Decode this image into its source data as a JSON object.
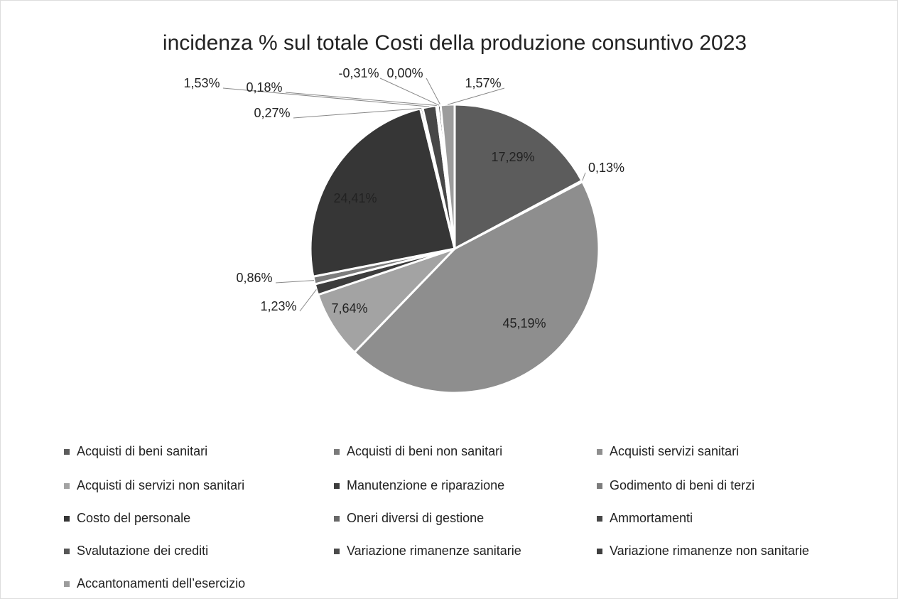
{
  "chart_data": {
    "type": "pie",
    "title": "incidenza  % sul totale Costi della produzione consuntivo 2023",
    "categories": [
      "Acquisti di beni sanitari",
      "Acquisti di beni non sanitari",
      "Acquisti servizi sanitari",
      " Acquisti di servizi non sanitari",
      "Manutenzione e riparazione",
      "Godimento di beni di terzi",
      "Costo del personale",
      "Oneri diversi di gestione",
      "Ammortamenti",
      "Svalutazione dei crediti",
      "Variazione rimanenze sanitarie",
      "Variazione rimanenze non sanitarie",
      "Accantonamenti dell’esercizio"
    ],
    "values": [
      17.29,
      0.13,
      45.19,
      7.64,
      1.23,
      0.86,
      24.41,
      0.27,
      1.53,
      0.18,
      -0.31,
      0.0,
      1.57
    ],
    "value_labels": [
      "17,29%",
      "0,13%",
      "45,19%",
      "7,64%",
      "1,23%",
      "0,86%",
      "24,41%",
      "0,27%",
      "1,53%",
      "0,18%",
      "-0,31%",
      "0,00%",
      "1,57%"
    ],
    "colors": [
      "#5c5c5c",
      "#7a7a7a",
      "#8e8e8e",
      "#a3a3a3",
      "#3d3d3d",
      "#7c7c7c",
      "#363636",
      "#686868",
      "#474747",
      "#575757",
      "#4b4b4b",
      "#3f3f3f",
      "#9c9c9c"
    ],
    "legend": "bottom"
  }
}
